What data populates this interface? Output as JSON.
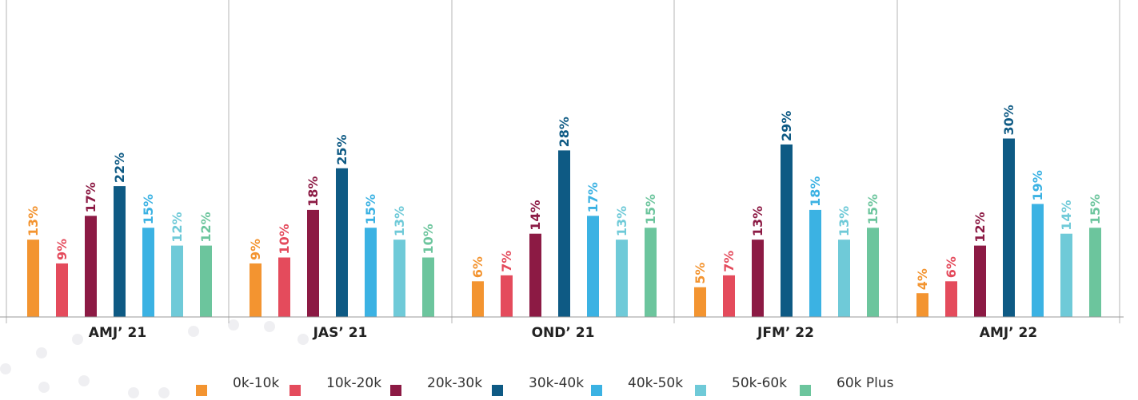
{
  "colors": {
    "0k-10k": "#F39430",
    "10k-20k": "#E44B5C",
    "20k-30k": "#8C1A44",
    "30k-40k": "#0E5A84",
    "40k-50k": "#3BB2E3",
    "50k-60k": "#6FCAD8",
    "60k Plus": "#6CC59D"
  },
  "legend": [
    {
      "label": "0k-10k"
    },
    {
      "label": "10k-20k"
    },
    {
      "label": "20k-30k"
    },
    {
      "label": "30k-40k"
    },
    {
      "label": "40k-50k"
    },
    {
      "label": "50k-60k"
    },
    {
      "label": "60k Plus"
    }
  ],
  "chart_data": {
    "type": "bar",
    "title": "",
    "xlabel": "",
    "ylabel": "",
    "ylim": [
      0,
      32
    ],
    "grid": false,
    "legend_position": "bottom",
    "categories": [
      "AMJ’ 21",
      "JAS’ 21",
      "OND’ 21",
      "JFM’ 22",
      "AMJ’ 22"
    ],
    "series": [
      {
        "name": "0k-10k",
        "values": [
          13,
          9,
          6,
          5,
          4
        ],
        "labels": [
          "13%",
          "9%",
          "6%",
          "5%",
          "4%"
        ]
      },
      {
        "name": "10k-20k",
        "values": [
          9,
          10,
          7,
          7,
          6
        ],
        "labels": [
          "9%",
          "10%",
          "7%",
          "7%",
          "6%"
        ]
      },
      {
        "name": "20k-30k",
        "values": [
          17,
          18,
          14,
          13,
          12
        ],
        "labels": [
          "17%",
          "18%",
          "14%",
          "13%",
          "12%"
        ]
      },
      {
        "name": "30k-40k",
        "values": [
          22,
          25,
          28,
          29,
          30
        ],
        "labels": [
          "22%",
          "25%",
          "28%",
          "29%",
          "30%"
        ]
      },
      {
        "name": "40k-50k",
        "values": [
          15,
          15,
          17,
          18,
          19
        ],
        "labels": [
          "15%",
          "15%",
          "17%",
          "18%",
          "19%"
        ]
      },
      {
        "name": "50k-60k",
        "values": [
          12,
          13,
          13,
          13,
          14
        ],
        "labels": [
          "12%",
          "13%",
          "13%",
          "13%",
          "14%"
        ]
      },
      {
        "name": "60k Plus",
        "values": [
          12,
          10,
          15,
          15,
          15
        ],
        "labels": [
          "12%",
          "10%",
          "15%",
          "15%",
          "15%"
        ]
      }
    ]
  }
}
